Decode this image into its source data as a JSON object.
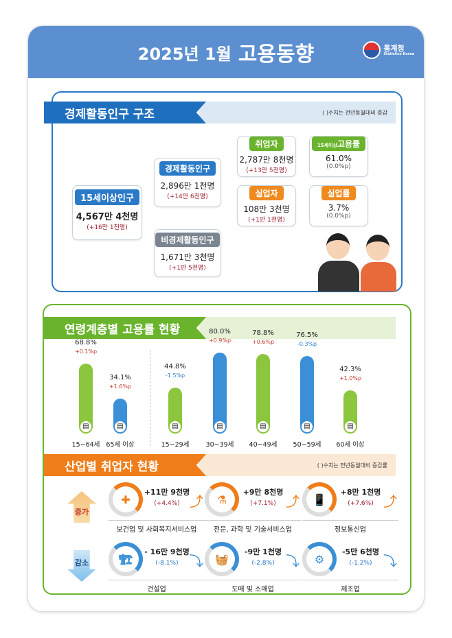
{
  "header": {
    "year": "2025년 1월",
    "title": "고용동향",
    "logo_text": "통계청",
    "logo_sub": "Statistics Korea"
  },
  "structure": {
    "title": "경제활동인구 구조",
    "note": "(  )수치는 전년동월대비 증감",
    "pop15": {
      "label": "15세이상인구",
      "value": "4,567만 4천명",
      "change": "(+16만 1천명)"
    },
    "active": {
      "label": "경제활동인구",
      "value": "2,896만 1천명",
      "change": "(+14만 6천명)"
    },
    "inactive": {
      "label": "비경제활동인구",
      "value": "1,671만 3천명",
      "change": "(+1만 5천명)"
    },
    "employed": {
      "label": "취업자",
      "value": "2,787만 8천명",
      "change": "(+13만 5천명)"
    },
    "unemployed": {
      "label": "실업자",
      "value": "108만 3천명",
      "change": "(+1만 1천명)"
    },
    "emp_rate": {
      "label_small": "15세이상",
      "label": "고용률",
      "value": "61.0%",
      "change": "(0.0%p)"
    },
    "unemp_rate": {
      "label": "실업률",
      "value": "3.7%",
      "change": "(0.0%p)"
    }
  },
  "age": {
    "title": "연령계층별 고용률 현황",
    "groups": [
      {
        "label": "15~64세",
        "rate": "68.8%",
        "value": 68.8,
        "change": "+0.1%p",
        "dir": "up",
        "color": "#8cc63f"
      },
      {
        "label": "65세 이상",
        "rate": "34.1%",
        "value": 34.1,
        "change": "+1.6%p",
        "dir": "up",
        "color": "#3a8fd6"
      },
      {
        "label": "15~29세",
        "rate": "44.8%",
        "value": 44.8,
        "change": "-1.5%p",
        "dir": "down",
        "color": "#8cc63f"
      },
      {
        "label": "30~39세",
        "rate": "80.0%",
        "value": 80.0,
        "change": "+0.9%p",
        "dir": "up",
        "color": "#3a8fd6"
      },
      {
        "label": "40~49세",
        "rate": "78.8%",
        "value": 78.8,
        "change": "+0.6%p",
        "dir": "up",
        "color": "#8cc63f"
      },
      {
        "label": "50~59세",
        "rate": "76.5%",
        "value": 76.5,
        "change": "-0.3%p",
        "dir": "down",
        "color": "#3a8fd6"
      },
      {
        "label": "60세 이상",
        "rate": "42.3%",
        "value": 42.3,
        "change": "+1.0%p",
        "dir": "up",
        "color": "#8cc63f"
      }
    ]
  },
  "industry": {
    "title": "산업별 취업자 현황",
    "note": "(  )수치는 전년동월대비 증감률",
    "increase_label": "증가",
    "decrease_label": "감소",
    "increase": [
      {
        "name": "보건업 및 사회복지서비스업",
        "change": "+11만 9천명",
        "rate": "(+4.4%)",
        "icon": "medical-kit-icon",
        "glyph": "✚"
      },
      {
        "name": "전문, 과학 및 기술서비스업",
        "change": "+9만 8천명",
        "rate": "(+7.1%)",
        "icon": "flask-icon",
        "glyph": "⚗"
      },
      {
        "name": "정보통신업",
        "change": "+8만 1천명",
        "rate": "(+7.6%)",
        "icon": "phone-icon",
        "glyph": "📱"
      }
    ],
    "decrease": [
      {
        "name": "건설업",
        "change": "- 16만 9천명",
        "rate": "(-8.1%)",
        "icon": "excavator-icon",
        "glyph": "🏗"
      },
      {
        "name": "도매 및 소매업",
        "change": "-9만 1천명",
        "rate": "(-2.8%)",
        "icon": "basket-icon",
        "glyph": "🧺"
      },
      {
        "name": "제조업",
        "change": "-5만 6천명",
        "rate": "(-1.2%)",
        "icon": "gear-icon",
        "glyph": "⚙"
      }
    ]
  },
  "colors": {
    "blue": "#1f6fbf",
    "green": "#6ab42d",
    "orange": "#ef7d1a",
    "gray": "#7a8590",
    "red": "#9b1c2c"
  }
}
